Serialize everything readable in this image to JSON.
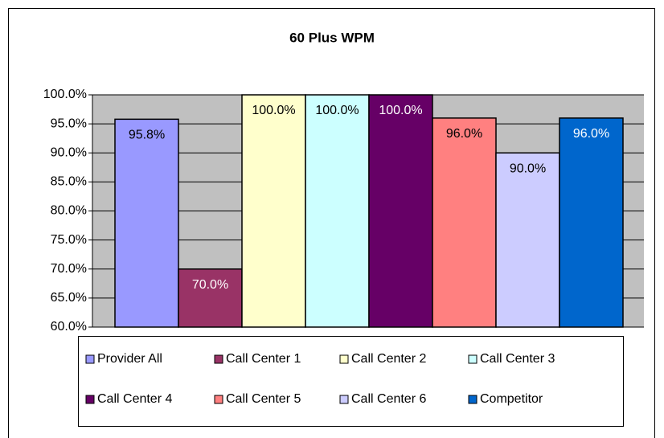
{
  "chart_data": {
    "type": "bar",
    "title": "60 Plus WPM",
    "categories": [
      null
    ],
    "series": [
      {
        "name": "Provider All",
        "color": "#9999ff",
        "values": [
          95.8
        ],
        "value_labels": [
          "95.8%"
        ]
      },
      {
        "name": "Call Center 1",
        "color": "#993366",
        "values": [
          70
        ],
        "value_labels": [
          "70.0%"
        ]
      },
      {
        "name": "Call Center 2",
        "color": "#ffffcc",
        "values": [
          100
        ],
        "value_labels": [
          "100.0%"
        ]
      },
      {
        "name": "Call Center 3",
        "color": "#ccffff",
        "values": [
          100
        ],
        "value_labels": [
          "100.0%"
        ]
      },
      {
        "name": "Call Center 4",
        "color": "#660066",
        "values": [
          100
        ],
        "value_labels": [
          "100.0%"
        ]
      },
      {
        "name": "Call Center 5",
        "color": "#ff8080",
        "values": [
          96
        ],
        "value_labels": [
          "96.0%"
        ]
      },
      {
        "name": "Call Center 6",
        "color": "#ccccff",
        "values": [
          90
        ],
        "value_labels": [
          "90.0%"
        ]
      },
      {
        "name": "Competitor",
        "color": "#0066cc",
        "values": [
          96
        ],
        "value_labels": [
          "96.0%"
        ]
      }
    ],
    "ylim": [
      60,
      100
    ],
    "yticks": [
      {
        "value": 60,
        "label": "60.0%"
      },
      {
        "value": 65,
        "label": "65.0%"
      },
      {
        "value": 70,
        "label": "70.0%"
      },
      {
        "value": 75,
        "label": "75.0%"
      },
      {
        "value": 80,
        "label": "80.0%"
      },
      {
        "value": 85,
        "label": "85.0%"
      },
      {
        "value": 90,
        "label": "90.0%"
      },
      {
        "value": 95,
        "label": "95.0%"
      },
      {
        "value": 100,
        "label": "100.0%"
      }
    ],
    "grid": true,
    "plot_background": "#c0c0c0"
  }
}
